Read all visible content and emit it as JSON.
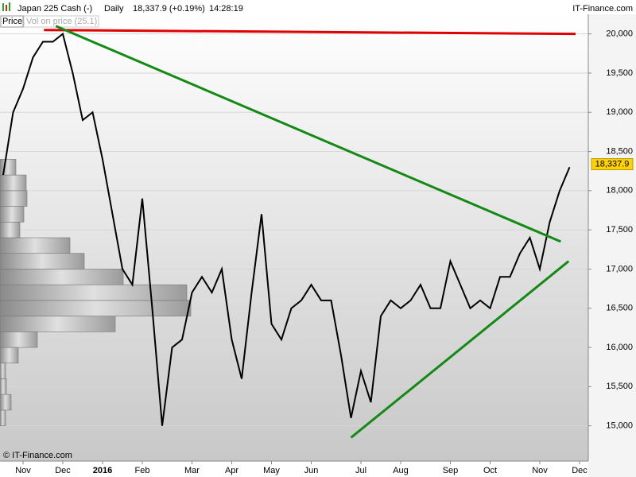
{
  "header": {
    "symbol": "Japan 225 Cash (-)",
    "period": "Daily",
    "quote": "18,337.9 (+0.19%)",
    "time": "14:28:19",
    "brand": "IT-Finance.com"
  },
  "tabs": [
    "Price",
    "Vol on price (25.1)"
  ],
  "footer": "© IT-Finance.com",
  "chart_data": {
    "type": "line",
    "categories": [
      null,
      null,
      "Nov",
      null,
      null,
      null,
      "Dec",
      null,
      null,
      null,
      "2016",
      null,
      null,
      null,
      "Feb",
      null,
      null,
      null,
      null,
      "Mar",
      null,
      null,
      null,
      "Apr",
      null,
      null,
      null,
      "May",
      null,
      null,
      null,
      "Jun",
      null,
      null,
      null,
      null,
      "Jul",
      null,
      null,
      null,
      "Aug",
      null,
      null,
      null,
      null,
      "Sep",
      null,
      null,
      null,
      "Oct",
      null,
      null,
      null,
      null,
      "Nov",
      null,
      null,
      null,
      "Dec"
    ],
    "series": [
      {
        "name": "Japan 225 Cash",
        "color": "#000000",
        "values": [
          18200,
          19000,
          19300,
          19700,
          19900,
          19900,
          20000,
          19500,
          18900,
          19000,
          18400,
          17700,
          17000,
          16800,
          17900,
          16500,
          15000,
          16000,
          16100,
          16700,
          16900,
          16700,
          17000,
          16100,
          15600,
          16700,
          17700,
          16300,
          16100,
          16500,
          16600,
          16800,
          16600,
          16600,
          15900,
          15100,
          15700,
          15300,
          16400,
          16600,
          16500,
          16600,
          16800,
          16500,
          16500,
          17100,
          16800,
          16500,
          16600,
          16500,
          16900,
          16900,
          17200,
          17400,
          17000,
          17600,
          18000,
          18300,
          null
        ]
      }
    ],
    "ylim": [
      14550,
      20250
    ],
    "yticks": [
      {
        "value": 15000,
        "label": "15,000"
      },
      {
        "value": 15500,
        "label": "15,500"
      },
      {
        "value": 16000,
        "label": "16,000"
      },
      {
        "value": 16500,
        "label": "16,500"
      },
      {
        "value": 17000,
        "label": "17,000"
      },
      {
        "value": 17500,
        "label": "17,500"
      },
      {
        "value": 18000,
        "label": "18,000"
      },
      {
        "value": 18500,
        "label": "18,500"
      },
      {
        "value": 19000,
        "label": "19,000"
      },
      {
        "value": 19500,
        "label": "19,500"
      },
      {
        "value": 20000,
        "label": "20,000"
      }
    ],
    "grid": true,
    "last": {
      "value": 18337.9,
      "label": "18,337.9"
    },
    "trendlines": [
      {
        "color": "#e00000",
        "x": [
          4.1,
          57.6
        ],
        "values": [
          20050,
          20000
        ]
      },
      {
        "color": "#138a13",
        "x": [
          5.3,
          56.1
        ],
        "values": [
          20100,
          17350
        ]
      },
      {
        "color": "#138a13",
        "x": [
          35,
          56.9
        ],
        "values": [
          14850,
          17100
        ]
      }
    ],
    "volume_profile": {
      "color": "#a8a8a8",
      "xlim": [
        0,
        800
      ],
      "bins": [
        15000,
        15200,
        15400,
        15600,
        15800,
        16000,
        16200,
        16400,
        16600,
        16800,
        17000,
        17200,
        17400,
        17600,
        17800,
        18000,
        18200,
        18400
      ],
      "values": [
        7,
        14,
        8,
        7,
        23,
        47,
        145,
        240,
        235,
        155,
        106,
        88,
        25,
        30,
        34,
        33,
        20
      ]
    }
  }
}
